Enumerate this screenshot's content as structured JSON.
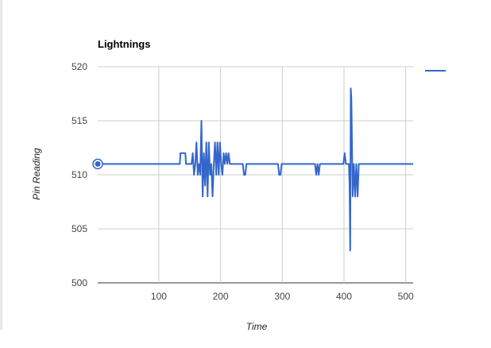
{
  "chart_data": {
    "type": "line",
    "title": "Lightnings",
    "xlabel": "Time",
    "ylabel": "Pin Reading",
    "xlim": [
      1,
      512
    ],
    "ylim": [
      500,
      520
    ],
    "x_ticks": [
      100,
      200,
      300,
      400,
      500
    ],
    "y_ticks": [
      500,
      505,
      510,
      515,
      520
    ],
    "grid": true,
    "legend_position": "right",
    "colors": {
      "series": "#3366cc",
      "grid": "#cccccc",
      "baseline": "#333333"
    },
    "series": [
      {
        "color": "#3366cc",
        "points": [
          [
            1,
            511
          ],
          [
            134,
            511
          ],
          [
            135,
            512
          ],
          [
            143,
            512
          ],
          [
            144,
            511
          ],
          [
            153,
            511
          ],
          [
            155,
            512
          ],
          [
            157,
            510
          ],
          [
            159,
            511
          ],
          [
            161,
            513
          ],
          [
            163,
            510
          ],
          [
            165,
            511
          ],
          [
            167,
            510
          ],
          [
            169,
            515
          ],
          [
            171,
            508
          ],
          [
            173,
            512
          ],
          [
            175,
            509
          ],
          [
            177,
            513
          ],
          [
            179,
            508
          ],
          [
            181,
            513
          ],
          [
            183,
            510
          ],
          [
            185,
            511
          ],
          [
            187,
            508
          ],
          [
            189,
            511
          ],
          [
            191,
            513
          ],
          [
            193,
            510
          ],
          [
            195,
            513
          ],
          [
            197,
            510
          ],
          [
            199,
            513
          ],
          [
            201,
            511
          ],
          [
            203,
            510
          ],
          [
            205,
            512
          ],
          [
            207,
            511
          ],
          [
            209,
            512
          ],
          [
            211,
            511
          ],
          [
            213,
            512
          ],
          [
            215,
            511
          ],
          [
            236,
            511
          ],
          [
            238,
            510
          ],
          [
            240,
            510
          ],
          [
            242,
            511
          ],
          [
            293,
            511
          ],
          [
            295,
            510
          ],
          [
            297,
            510
          ],
          [
            299,
            511
          ],
          [
            353,
            511
          ],
          [
            355,
            510
          ],
          [
            357,
            511
          ],
          [
            359,
            510
          ],
          [
            361,
            511
          ],
          [
            399,
            511
          ],
          [
            401,
            512
          ],
          [
            403,
            511
          ],
          [
            408,
            511
          ],
          [
            409,
            509
          ],
          [
            410,
            503
          ],
          [
            411,
            518
          ],
          [
            412,
            517
          ],
          [
            414,
            508
          ],
          [
            416,
            511
          ],
          [
            418,
            508
          ],
          [
            420,
            511
          ],
          [
            422,
            508
          ],
          [
            424,
            511
          ],
          [
            512,
            511
          ]
        ]
      }
    ]
  }
}
